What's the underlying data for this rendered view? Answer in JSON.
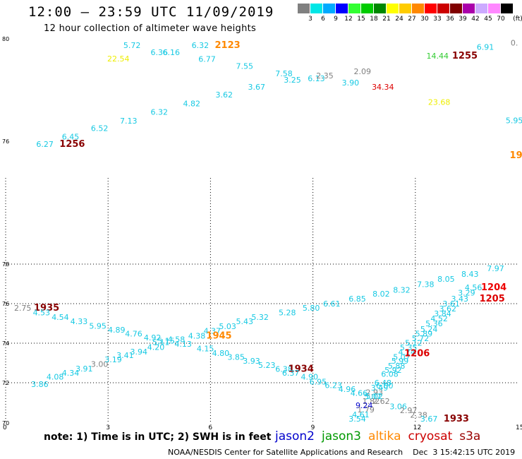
{
  "header": {
    "title": "12:00 — 23:59 UTC 11/09/2019",
    "subtitle": "12 hour collection of altimeter wave heights"
  },
  "colorbar": {
    "unit": "(ft)",
    "swatches": [
      {
        "label": "3",
        "color": "#808080"
      },
      {
        "label": "6",
        "color": "#00e6e6"
      },
      {
        "label": "9",
        "color": "#00aaff"
      },
      {
        "label": "12",
        "color": "#0000ff"
      },
      {
        "label": "15",
        "color": "#33ff33"
      },
      {
        "label": "18",
        "color": "#00cc00"
      },
      {
        "label": "21",
        "color": "#008800"
      },
      {
        "label": "24",
        "color": "#ffff00"
      },
      {
        "label": "27",
        "color": "#ffcc00"
      },
      {
        "label": "30",
        "color": "#ff8800"
      },
      {
        "label": "33",
        "color": "#ff0000"
      },
      {
        "label": "36",
        "color": "#cc0000"
      },
      {
        "label": "39",
        "color": "#800000"
      },
      {
        "label": "42",
        "color": "#aa00aa"
      },
      {
        "label": "45",
        "color": "#ccaaff"
      },
      {
        "label": "70",
        "color": "#ff88ff"
      },
      {
        "label": "",
        "color": "#000000"
      }
    ]
  },
  "footnote": "note:  1) Time is in UTC;  2) SWH is in feet",
  "legend": [
    {
      "name": "jason2",
      "color": "#0000cc"
    },
    {
      "name": "jason3",
      "color": "#009900"
    },
    {
      "name": "altika",
      "color": "#ff8800"
    },
    {
      "name": "cryosat",
      "color": "#cc0000"
    },
    {
      "name": "s3a",
      "color": "#990000"
    }
  ],
  "credit": "NOAA/NESDIS Center for Satellite Applications and Research    Dec  3 15:42:15 UTC 2019",
  "chart_data": {
    "type": "scatter",
    "title": "12:00 — 23:59 UTC 11/09/2019",
    "subtitle": "12 hour collection of altimeter wave heights",
    "x_axis": {
      "range": [
        0,
        15
      ],
      "ticks": [
        "0",
        "3",
        "6",
        "9",
        "12",
        "15"
      ]
    },
    "y_axis": {
      "range": [
        70,
        80
      ],
      "ticks": [
        "70",
        "72",
        "74",
        "76",
        "78",
        "80"
      ]
    },
    "grid": true,
    "colors": {
      "gray": "#808080",
      "cyan": "#17c9e3",
      "yellow": "#eeee00",
      "lightgreen": "#33cc33",
      "orange": "#ff8800",
      "darkred": "#880000",
      "red": "#dd0000",
      "brightred": "#ee0000",
      "blue": "#0000cc"
    },
    "labels": [
      {
        "x": 1.0,
        "y": 71.92,
        "t": "3.86",
        "c": "cyan"
      },
      {
        "x": 1.45,
        "y": 72.3,
        "t": "4.08",
        "c": "cyan"
      },
      {
        "x": 1.9,
        "y": 72.5,
        "t": "4.34",
        "c": "cyan"
      },
      {
        "x": 2.3,
        "y": 72.72,
        "t": "3.91",
        "c": "cyan"
      },
      {
        "x": 2.75,
        "y": 72.95,
        "t": "3.00",
        "c": "gray"
      },
      {
        "x": 3.15,
        "y": 73.18,
        "t": "3.19",
        "c": "cyan"
      },
      {
        "x": 3.5,
        "y": 73.4,
        "t": "3.41",
        "c": "cyan"
      },
      {
        "x": 3.9,
        "y": 73.58,
        "t": "3.94",
        "c": "cyan"
      },
      {
        "x": 4.4,
        "y": 73.8,
        "t": "4.20",
        "c": "cyan"
      },
      {
        "x": 0.5,
        "y": 75.78,
        "t": "2.75",
        "c": "gray"
      },
      {
        "x": 1.2,
        "y": 75.78,
        "t": "1935",
        "c": "darkred",
        "big": true
      },
      {
        "x": 1.05,
        "y": 75.55,
        "t": "4.53",
        "c": "cyan"
      },
      {
        "x": 1.6,
        "y": 75.32,
        "t": "4.54",
        "c": "cyan"
      },
      {
        "x": 2.15,
        "y": 75.1,
        "t": "4.33",
        "c": "cyan"
      },
      {
        "x": 2.7,
        "y": 74.88,
        "t": "5.95",
        "c": "cyan"
      },
      {
        "x": 3.25,
        "y": 74.68,
        "t": "4.89",
        "c": "cyan"
      },
      {
        "x": 3.75,
        "y": 74.48,
        "t": "4.76",
        "c": "cyan"
      },
      {
        "x": 4.3,
        "y": 74.28,
        "t": "4.92",
        "c": "cyan"
      },
      {
        "x": 4.7,
        "y": 74.12,
        "t": "5.15",
        "c": "cyan"
      },
      {
        "x": 5.0,
        "y": 74.2,
        "t": "4.58",
        "c": "cyan"
      },
      {
        "x": 4.55,
        "y": 74.05,
        "t": "5.11",
        "c": "cyan"
      },
      {
        "x": 5.2,
        "y": 73.96,
        "t": "4.13",
        "c": "cyan"
      },
      {
        "x": 5.6,
        "y": 74.38,
        "t": "4.38",
        "c": "cyan"
      },
      {
        "x": 6.05,
        "y": 74.62,
        "t": "4.37",
        "c": "cyan"
      },
      {
        "x": 6.5,
        "y": 74.85,
        "t": "5.03",
        "c": "cyan"
      },
      {
        "x": 7.0,
        "y": 75.1,
        "t": "5.43",
        "c": "cyan"
      },
      {
        "x": 7.45,
        "y": 75.32,
        "t": "5.32",
        "c": "cyan"
      },
      {
        "x": 8.25,
        "y": 75.55,
        "t": "5.28",
        "c": "cyan"
      },
      {
        "x": 8.95,
        "y": 75.78,
        "t": "5.80",
        "c": "cyan"
      },
      {
        "x": 9.55,
        "y": 76.0,
        "t": "6.61",
        "c": "cyan"
      },
      {
        "x": 10.3,
        "y": 76.25,
        "t": "6.85",
        "c": "cyan"
      },
      {
        "x": 11.0,
        "y": 76.5,
        "t": "8.02",
        "c": "cyan"
      },
      {
        "x": 11.6,
        "y": 76.7,
        "t": "8.32",
        "c": "cyan"
      },
      {
        "x": 12.3,
        "y": 76.98,
        "t": "7.38",
        "c": "cyan"
      },
      {
        "x": 12.9,
        "y": 77.25,
        "t": "8.05",
        "c": "cyan"
      },
      {
        "x": 13.6,
        "y": 77.5,
        "t": "8.43",
        "c": "cyan"
      },
      {
        "x": 14.35,
        "y": 77.78,
        "t": "7.97",
        "c": "cyan"
      },
      {
        "x": 6.25,
        "y": 74.38,
        "t": "1945",
        "c": "orange",
        "big": true
      },
      {
        "x": 5.85,
        "y": 73.74,
        "t": "4.15",
        "c": "cyan"
      },
      {
        "x": 6.3,
        "y": 73.5,
        "t": "4.80",
        "c": "cyan"
      },
      {
        "x": 6.75,
        "y": 73.3,
        "t": "3.85",
        "c": "cyan"
      },
      {
        "x": 7.2,
        "y": 73.1,
        "t": "3.93",
        "c": "cyan"
      },
      {
        "x": 7.65,
        "y": 72.9,
        "t": "5.23",
        "c": "cyan"
      },
      {
        "x": 8.15,
        "y": 72.7,
        "t": "6.38",
        "c": "cyan"
      },
      {
        "x": 8.65,
        "y": 72.7,
        "t": "1934",
        "c": "darkred",
        "big": true
      },
      {
        "x": 8.35,
        "y": 72.5,
        "t": "6.37",
        "c": "cyan"
      },
      {
        "x": 8.9,
        "y": 72.3,
        "t": "4.90",
        "c": "cyan"
      },
      {
        "x": 9.15,
        "y": 72.05,
        "t": "6.95",
        "c": "cyan"
      },
      {
        "x": 9.6,
        "y": 71.88,
        "t": "6.23",
        "c": "cyan"
      },
      {
        "x": 10.0,
        "y": 71.68,
        "t": "4.96",
        "c": "cyan"
      },
      {
        "x": 10.35,
        "y": 71.48,
        "t": "4.66",
        "c": "cyan"
      },
      {
        "x": 10.8,
        "y": 71.52,
        "t": "2.93",
        "c": "gray"
      },
      {
        "x": 10.75,
        "y": 71.3,
        "t": "5.07",
        "c": "cyan"
      },
      {
        "x": 10.7,
        "y": 71.08,
        "t": "1.82",
        "c": "gray"
      },
      {
        "x": 11.0,
        "y": 71.08,
        "t": "2.62",
        "c": "gray"
      },
      {
        "x": 10.5,
        "y": 70.85,
        "t": "9.24",
        "c": "blue"
      },
      {
        "x": 10.55,
        "y": 70.65,
        "t": "1.79",
        "c": "gray"
      },
      {
        "x": 10.4,
        "y": 70.4,
        "t": "4.61",
        "c": "cyan"
      },
      {
        "x": 10.3,
        "y": 70.18,
        "t": "3.54",
        "c": "cyan"
      },
      {
        "x": 11.5,
        "y": 70.8,
        "t": "3.06",
        "c": "cyan"
      },
      {
        "x": 11.8,
        "y": 70.6,
        "t": "2.97",
        "c": "gray"
      },
      {
        "x": 12.1,
        "y": 70.38,
        "t": "2.38",
        "c": "gray"
      },
      {
        "x": 12.4,
        "y": 70.18,
        "t": "3.67",
        "c": "cyan"
      },
      {
        "x": 13.2,
        "y": 70.18,
        "t": "1933",
        "c": "darkred",
        "big": true
      },
      {
        "x": 10.8,
        "y": 71.32,
        "t": "5.02",
        "c": "cyan"
      },
      {
        "x": 10.95,
        "y": 71.75,
        "t": "3.49",
        "c": "cyan"
      },
      {
        "x": 11.05,
        "y": 72.0,
        "t": "6.48",
        "c": "cyan"
      },
      {
        "x": 11.1,
        "y": 71.85,
        "t": "6.00",
        "c": "cyan"
      },
      {
        "x": 11.25,
        "y": 72.45,
        "t": "6.08",
        "c": "cyan"
      },
      {
        "x": 11.35,
        "y": 72.65,
        "t": "5.92",
        "c": "cyan"
      },
      {
        "x": 11.45,
        "y": 72.85,
        "t": "5.88",
        "c": "cyan"
      },
      {
        "x": 11.55,
        "y": 73.1,
        "t": "5.99",
        "c": "cyan"
      },
      {
        "x": 11.6,
        "y": 73.3,
        "t": "5.07",
        "c": "cyan"
      },
      {
        "x": 11.75,
        "y": 73.55,
        "t": "4.74",
        "c": "cyan"
      },
      {
        "x": 11.8,
        "y": 73.78,
        "t": "5.35",
        "c": "cyan"
      },
      {
        "x": 12.05,
        "y": 73.48,
        "t": "1206",
        "c": "red",
        "big": true
      },
      {
        "x": 11.95,
        "y": 74.02,
        "t": "5.12",
        "c": "cyan"
      },
      {
        "x": 12.15,
        "y": 74.25,
        "t": "5.72",
        "c": "cyan"
      },
      {
        "x": 12.25,
        "y": 74.48,
        "t": "5.89",
        "c": "cyan"
      },
      {
        "x": 12.4,
        "y": 74.72,
        "t": "5.24",
        "c": "cyan"
      },
      {
        "x": 12.55,
        "y": 75.0,
        "t": "5.36",
        "c": "cyan"
      },
      {
        "x": 12.7,
        "y": 75.25,
        "t": "4.52",
        "c": "cyan"
      },
      {
        "x": 12.8,
        "y": 75.5,
        "t": "3.84",
        "c": "cyan"
      },
      {
        "x": 12.95,
        "y": 75.75,
        "t": "3.62",
        "c": "cyan"
      },
      {
        "x": 13.05,
        "y": 76.0,
        "t": "3.61",
        "c": "cyan"
      },
      {
        "x": 13.3,
        "y": 76.25,
        "t": "3.43",
        "c": "cyan"
      },
      {
        "x": 13.5,
        "y": 76.55,
        "t": "3.29",
        "c": "cyan"
      },
      {
        "x": 13.7,
        "y": 76.82,
        "t": "4.56",
        "c": "cyan"
      },
      {
        "x": 14.25,
        "y": 76.25,
        "t": "1205",
        "c": "red",
        "big": true
      },
      {
        "x": 14.3,
        "y": 76.82,
        "t": "1204",
        "c": "brightred",
        "big": true
      }
    ],
    "top_labels": [
      {
        "x": 1.15,
        "y": 87.94,
        "t": "6.27",
        "c": "cyan"
      },
      {
        "x": 1.95,
        "y": 87.94,
        "t": "1256",
        "c": "darkred",
        "big": true
      },
      {
        "x": 1.9,
        "y": 88.15,
        "t": "6.45",
        "c": "cyan"
      },
      {
        "x": 2.75,
        "y": 88.39,
        "t": "6.52",
        "c": "cyan"
      },
      {
        "x": 3.6,
        "y": 88.61,
        "t": "7.13",
        "c": "cyan"
      },
      {
        "x": 4.5,
        "y": 88.86,
        "t": "6.32",
        "c": "cyan"
      },
      {
        "x": 5.45,
        "y": 89.1,
        "t": "4.82",
        "c": "cyan"
      },
      {
        "x": 6.4,
        "y": 89.35,
        "t": "3.62",
        "c": "cyan"
      },
      {
        "x": 7.35,
        "y": 89.58,
        "t": "3.67",
        "c": "cyan"
      },
      {
        "x": 8.4,
        "y": 89.78,
        "t": "3.25",
        "c": "cyan"
      },
      {
        "x": 9.1,
        "y": 89.82,
        "t": "6.13",
        "c": "cyan"
      },
      {
        "x": 9.35,
        "y": 89.9,
        "t": "2.35",
        "c": "gray"
      },
      {
        "x": 8.15,
        "y": 89.96,
        "t": "7.58",
        "c": "cyan"
      },
      {
        "x": 7.0,
        "y": 90.17,
        "t": "7.55",
        "c": "cyan"
      },
      {
        "x": 5.9,
        "y": 90.38,
        "t": "6.77",
        "c": "cyan"
      },
      {
        "x": 3.3,
        "y": 90.39,
        "t": "22.54",
        "c": "yellow"
      },
      {
        "x": 4.5,
        "y": 90.57,
        "t": "6.36",
        "c": "cyan"
      },
      {
        "x": 4.85,
        "y": 90.57,
        "t": "6.16",
        "c": "cyan"
      },
      {
        "x": 3.7,
        "y": 90.77,
        "t": "5.72",
        "c": "cyan"
      },
      {
        "x": 5.7,
        "y": 90.77,
        "t": "6.32",
        "c": "cyan"
      },
      {
        "x": 6.5,
        "y": 90.77,
        "t": "2123",
        "c": "orange",
        "big": true
      },
      {
        "x": 10.45,
        "y": 90.02,
        "t": "2.09",
        "c": "gray"
      },
      {
        "x": 10.1,
        "y": 89.7,
        "t": "3.90",
        "c": "cyan"
      },
      {
        "x": 11.05,
        "y": 89.58,
        "t": "34.34",
        "c": "red"
      },
      {
        "x": 12.65,
        "y": 90.47,
        "t": "14.44",
        "c": "lightgreen"
      },
      {
        "x": 13.45,
        "y": 90.47,
        "t": "1255",
        "c": "darkred",
        "big": true
      },
      {
        "x": 14.05,
        "y": 90.72,
        "t": "6.91",
        "c": "cyan"
      },
      {
        "x": 12.7,
        "y": 89.14,
        "t": "23.68",
        "c": "yellow"
      },
      {
        "x": 14.9,
        "y": 88.62,
        "t": "5.95",
        "c": "cyan"
      },
      {
        "x": 14.9,
        "y": 90.84,
        "t": "0.",
        "c": "gray"
      },
      {
        "x": 14.95,
        "y": 87.62,
        "t": "19",
        "c": "orange",
        "big": true
      }
    ],
    "top_axis": {
      "ticks": [
        "76",
        "78",
        "80"
      ]
    }
  }
}
